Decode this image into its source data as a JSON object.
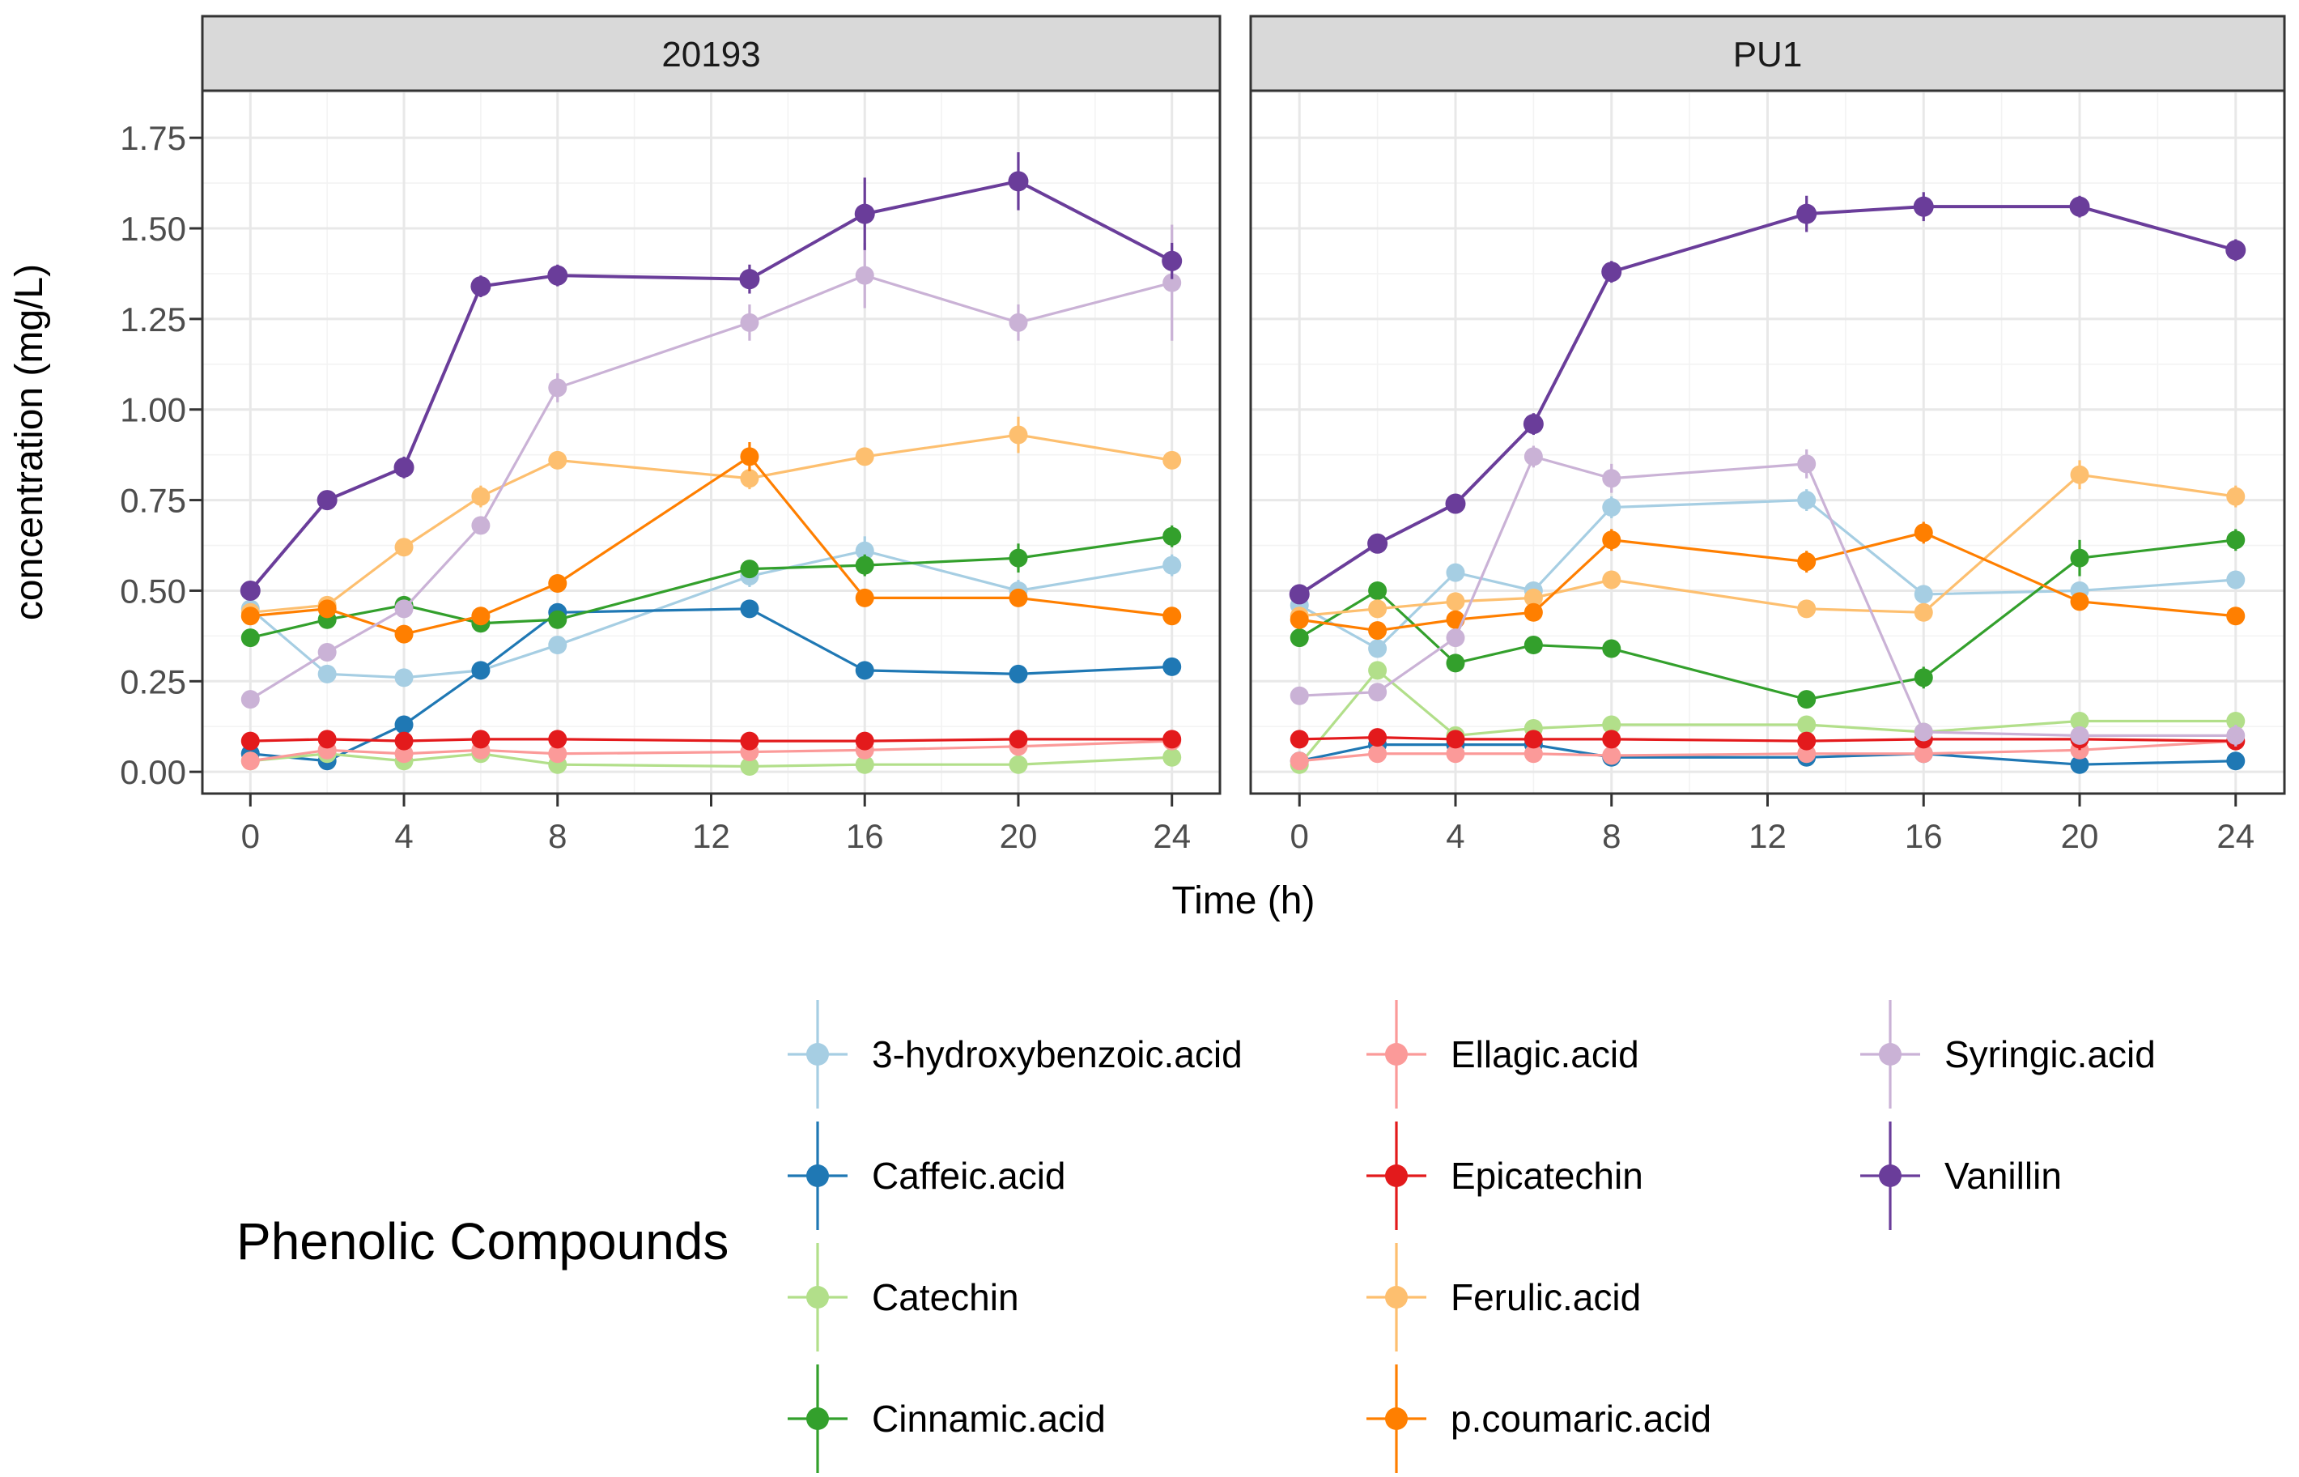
{
  "chart_data": {
    "type": "line",
    "facet_labels": [
      "20193",
      "PU1"
    ],
    "xlabel": "Time (h)",
    "ylabel": "concentration (mg/L)",
    "legend_title": "Phenolic Compounds",
    "x": [
      0,
      2,
      4,
      6,
      8,
      13,
      16,
      20,
      24
    ],
    "xlim": [
      -1.25,
      25.25
    ],
    "ylim": [
      -0.06,
      1.88
    ],
    "x_ticks": [
      0,
      4,
      8,
      12,
      16,
      20,
      24
    ],
    "x_tick_labels": [
      "0",
      "4",
      "8",
      "12",
      "16",
      "20",
      "24"
    ],
    "x_minor_ticks": [
      2,
      6,
      10,
      14,
      18,
      22
    ],
    "y_ticks": [
      0,
      0.25,
      0.5,
      0.75,
      1.0,
      1.25,
      1.5,
      1.75
    ],
    "y_tick_labels": [
      "0.00",
      "0.25",
      "0.50",
      "0.75",
      "1.00",
      "1.25",
      "1.50",
      "1.75"
    ],
    "y_minor_ticks": [
      0.125,
      0.375,
      0.625,
      0.875,
      1.125,
      1.375,
      1.625,
      1.875
    ],
    "grid": true,
    "legend_position": "bottom",
    "legend_columns": [
      [
        0,
        1,
        2,
        3
      ],
      [
        4,
        5,
        6,
        7
      ],
      [
        8,
        9
      ]
    ],
    "legend_col_x": [
      955,
      1670,
      2280
    ],
    "series": [
      {
        "name": "3-hydroxybenzoic.acid",
        "color": "#A6CEE3",
        "panels": [
          {
            "y": [
              0.45,
              0.27,
              0.26,
              0.28,
              0.35,
              0.54,
              0.61,
              0.5,
              0.57
            ],
            "err": [
              0.02,
              0.015,
              0.015,
              0.015,
              0.02,
              0.03,
              0.04,
              0.03,
              0.03
            ]
          },
          {
            "y": [
              0.46,
              0.34,
              0.55,
              0.5,
              0.73,
              0.75,
              0.49,
              0.5,
              0.53
            ],
            "err": [
              0.02,
              0.02,
              0.02,
              0.02,
              0.03,
              0.03,
              0.02,
              0.02,
              0.02
            ]
          }
        ]
      },
      {
        "name": "Caffeic.acid",
        "color": "#1F78B4",
        "panels": [
          {
            "y": [
              0.05,
              0.03,
              0.13,
              0.28,
              0.44,
              0.45,
              0.28,
              0.27,
              0.29
            ],
            "err": [
              0.01,
              0.01,
              0.015,
              0.015,
              0.02,
              0.02,
              0.015,
              0.015,
              0.015
            ]
          },
          {
            "y": [
              0.03,
              0.075,
              0.075,
              0.075,
              0.04,
              0.04,
              0.05,
              0.02,
              0.03
            ],
            "err": [
              0.01,
              0.01,
              0.01,
              0.01,
              0.01,
              0.01,
              0.01,
              0.01,
              0.01
            ]
          }
        ]
      },
      {
        "name": "Catechin",
        "color": "#B2DF8A",
        "panels": [
          {
            "y": [
              0.03,
              0.05,
              0.03,
              0.05,
              0.02,
              0.015,
              0.02,
              0.02,
              0.04
            ],
            "err": [
              0.01,
              0.01,
              0.01,
              0.01,
              0.01,
              0.01,
              0.01,
              0.01,
              0.01
            ]
          },
          {
            "y": [
              0.02,
              0.28,
              0.1,
              0.12,
              0.13,
              0.13,
              0.11,
              0.14,
              0.14
            ],
            "err": [
              0.015,
              0.015,
              0.015,
              0.015,
              0.015,
              0.015,
              0.015,
              0.015,
              0.015
            ]
          }
        ]
      },
      {
        "name": "Cinnamic.acid",
        "color": "#33A02C",
        "panels": [
          {
            "y": [
              0.37,
              0.42,
              0.46,
              0.41,
              0.42,
              0.56,
              0.57,
              0.59,
              0.65
            ],
            "err": [
              0.02,
              0.02,
              0.02,
              0.02,
              0.02,
              0.02,
              0.03,
              0.04,
              0.03
            ]
          },
          {
            "y": [
              0.37,
              0.5,
              0.3,
              0.35,
              0.34,
              0.2,
              0.26,
              0.59,
              0.64
            ],
            "err": [
              0.02,
              0.02,
              0.02,
              0.02,
              0.02,
              0.02,
              0.03,
              0.05,
              0.03
            ]
          }
        ]
      },
      {
        "name": "Ellagic.acid",
        "color": "#FB9A99",
        "panels": [
          {
            "y": [
              0.03,
              0.06,
              0.05,
              0.06,
              0.05,
              0.055,
              0.06,
              0.07,
              0.085
            ],
            "err": [
              0.01,
              0.01,
              0.01,
              0.01,
              0.01,
              0.01,
              0.01,
              0.01,
              0.01
            ]
          },
          {
            "y": [
              0.03,
              0.05,
              0.05,
              0.05,
              0.045,
              0.05,
              0.05,
              0.06,
              0.085
            ],
            "err": [
              0.01,
              0.01,
              0.01,
              0.01,
              0.01,
              0.01,
              0.01,
              0.01,
              0.01
            ]
          }
        ]
      },
      {
        "name": "Epicatechin",
        "color": "#E31A1C",
        "panels": [
          {
            "y": [
              0.085,
              0.09,
              0.085,
              0.09,
              0.09,
              0.085,
              0.085,
              0.09,
              0.09
            ],
            "err": [
              0.01,
              0.01,
              0.01,
              0.01,
              0.01,
              0.01,
              0.01,
              0.01,
              0.01
            ]
          },
          {
            "y": [
              0.09,
              0.095,
              0.09,
              0.09,
              0.09,
              0.085,
              0.09,
              0.09,
              0.085
            ],
            "err": [
              0.01,
              0.01,
              0.01,
              0.01,
              0.01,
              0.01,
              0.015,
              0.03,
              0.015
            ]
          }
        ]
      },
      {
        "name": "Ferulic.acid",
        "color": "#FDBF6F",
        "panels": [
          {
            "y": [
              0.44,
              0.46,
              0.62,
              0.76,
              0.86,
              0.81,
              0.87,
              0.93,
              0.86
            ],
            "err": [
              0.02,
              0.02,
              0.02,
              0.03,
              0.02,
              0.03,
              0.02,
              0.05,
              0.02
            ]
          },
          {
            "y": [
              0.43,
              0.45,
              0.47,
              0.48,
              0.53,
              0.45,
              0.44,
              0.82,
              0.76
            ],
            "err": [
              0.02,
              0.02,
              0.02,
              0.02,
              0.02,
              0.02,
              0.02,
              0.04,
              0.03
            ]
          }
        ]
      },
      {
        "name": "p.coumaric.acid",
        "color": "#FF7F00",
        "panels": [
          {
            "y": [
              0.43,
              0.45,
              0.38,
              0.43,
              0.52,
              0.87,
              0.48,
              0.48,
              0.43
            ],
            "err": [
              0.02,
              0.02,
              0.015,
              0.02,
              0.02,
              0.04,
              0.02,
              0.02,
              0.02
            ]
          },
          {
            "y": [
              0.42,
              0.39,
              0.42,
              0.44,
              0.64,
              0.58,
              0.66,
              0.47,
              0.43
            ],
            "err": [
              0.02,
              0.02,
              0.02,
              0.02,
              0.03,
              0.03,
              0.03,
              0.02,
              0.02
            ]
          }
        ]
      },
      {
        "name": "Syringic.acid",
        "color": "#CAB2D6",
        "panels": [
          {
            "y": [
              0.2,
              0.33,
              0.45,
              0.68,
              1.06,
              1.24,
              1.37,
              1.24,
              1.35
            ],
            "err": [
              0.01,
              0.015,
              0.02,
              0.02,
              0.04,
              0.05,
              0.09,
              0.05,
              0.16
            ]
          },
          {
            "y": [
              0.21,
              0.22,
              0.37,
              0.87,
              0.81,
              0.85,
              0.11,
              0.1,
              0.1
            ],
            "err": [
              0.01,
              0.01,
              0.02,
              0.03,
              0.04,
              0.04,
              0.02,
              0.02,
              0.03
            ]
          }
        ]
      },
      {
        "name": "Vanillin",
        "color": "#6A3D9A",
        "panels": [
          {
            "y": [
              0.5,
              0.75,
              0.84,
              1.34,
              1.37,
              1.36,
              1.54,
              1.63,
              1.41
            ],
            "err": [
              0.02,
              0.02,
              0.03,
              0.03,
              0.03,
              0.04,
              0.1,
              0.08,
              0.05
            ]
          },
          {
            "y": [
              0.49,
              0.63,
              0.74,
              0.96,
              1.38,
              1.54,
              1.56,
              1.56,
              1.44
            ],
            "err": [
              0.02,
              0.02,
              0.02,
              0.03,
              0.03,
              0.05,
              0.04,
              0.03,
              0.03
            ]
          }
        ]
      }
    ]
  },
  "style": {
    "strip_fill": "#d9d9d9",
    "panel_border": "#333333",
    "tick_color": "#333333"
  }
}
